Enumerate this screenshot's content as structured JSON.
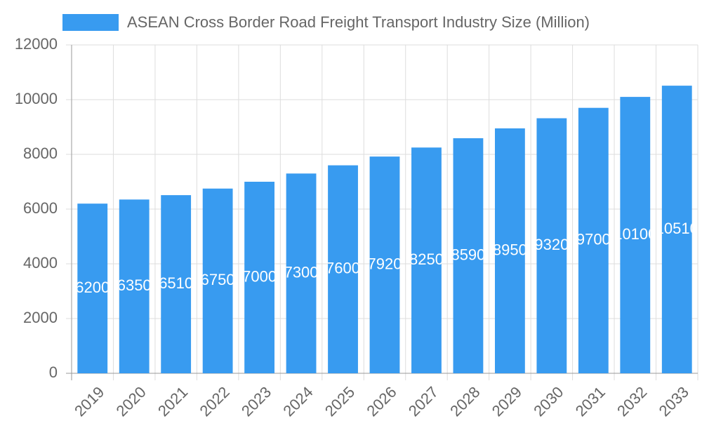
{
  "chart_data": {
    "type": "bar",
    "categories": [
      "2019",
      "2020",
      "2021",
      "2022",
      "2023",
      "2024",
      "2025",
      "2026",
      "2027",
      "2028",
      "2029",
      "2030",
      "2031",
      "2032",
      "2033"
    ],
    "series": [
      {
        "name": "ASEAN Cross Border Road Freight Transport Industry Size (Million)",
        "color": "#389bf0",
        "values": [
          6200,
          6350,
          6510,
          6750,
          7000,
          7300,
          7600,
          7920,
          8250,
          8590,
          8950,
          9320,
          9700,
          10100,
          10510
        ]
      }
    ],
    "ylim": [
      0,
      12000
    ],
    "yticks": [
      0,
      2000,
      4000,
      6000,
      8000,
      10000,
      12000
    ],
    "grid": true,
    "legend": "top"
  }
}
